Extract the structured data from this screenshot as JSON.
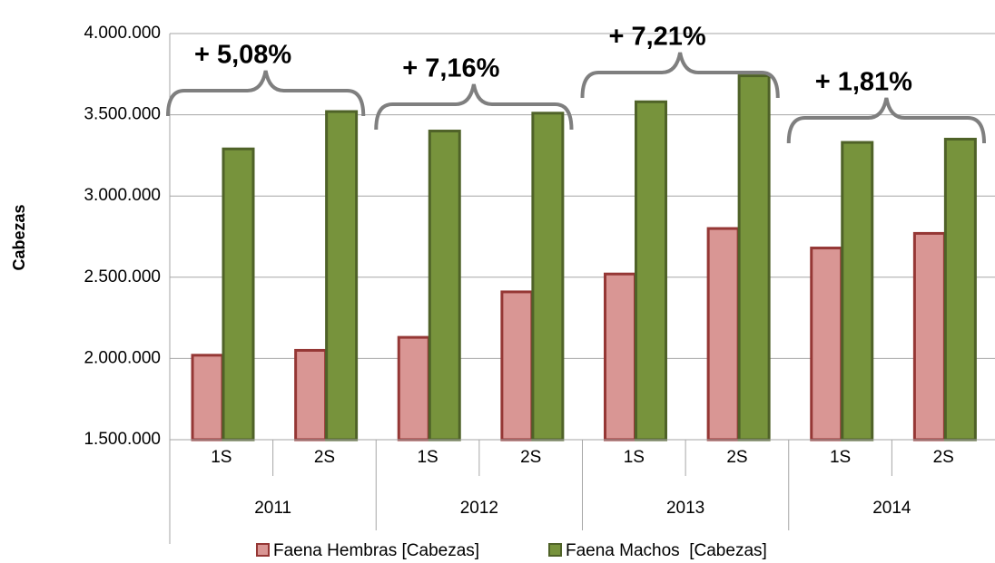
{
  "chart_data": {
    "type": "bar",
    "y_label": "Cabezas",
    "categories": [
      "1S",
      "2S",
      "1S",
      "2S",
      "1S",
      "2S",
      "1S",
      "2S"
    ],
    "groups": [
      "2011",
      "2012",
      "2013",
      "2014"
    ],
    "series": [
      {
        "name": "Faena Hembras [Cabezas]",
        "color": "#d99694",
        "values": [
          2020000,
          2050000,
          2130000,
          2410000,
          2520000,
          2800000,
          2680000,
          2770000
        ]
      },
      {
        "name": "Faena Machos  [Cabezas]",
        "color": "#77933c",
        "values": [
          3290000,
          3520000,
          3400000,
          3510000,
          3580000,
          3740000,
          3330000,
          3350000
        ]
      }
    ],
    "annotations": [
      "+ 5,08%",
      "+ 7,16%",
      "+ 7,21%",
      "+ 1,81%"
    ],
    "ylim": [
      1500000,
      4000000
    ],
    "yticks": [
      {
        "value": 1500000,
        "label": "1.500.000"
      },
      {
        "value": 2000000,
        "label": "2.000.000"
      },
      {
        "value": 2500000,
        "label": "2.500.000"
      },
      {
        "value": 3000000,
        "label": "3.000.000"
      },
      {
        "value": 3500000,
        "label": "3.500.000"
      },
      {
        "value": 4000000,
        "label": "4.000.000"
      }
    ],
    "grid": true,
    "legend": "bottom"
  }
}
